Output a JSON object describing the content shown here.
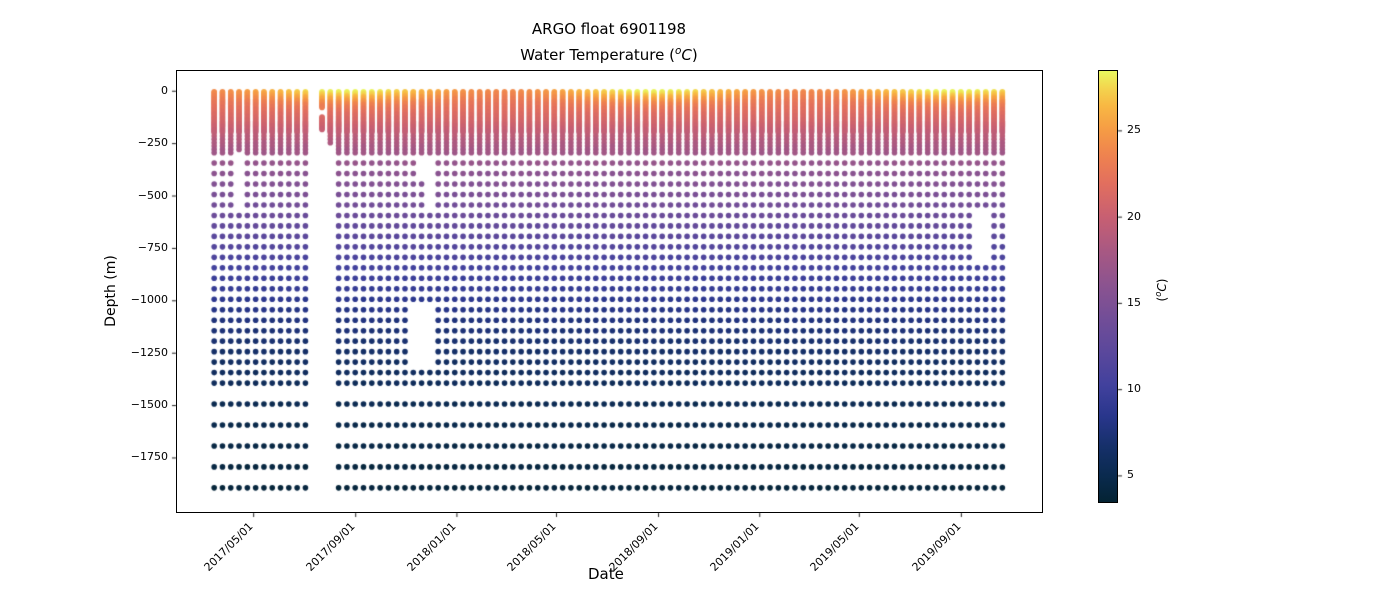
{
  "labels": {
    "title": "ARGO float 6901198",
    "subtitle_prefix": "Water Temperature (",
    "subtitle_sup": "o",
    "subtitle_var": "C",
    "subtitle_close": ")",
    "xlabel": "Date",
    "ylabel": "Depth (m)",
    "colorbar_prefix": "(",
    "colorbar_sup": "o",
    "colorbar_var": "C",
    "colorbar_close": ")"
  },
  "chart_data": {
    "type": "scatter",
    "title": "ARGO float 6901198",
    "subtitle": "Water Temperature (°C)",
    "xlabel": "Date",
    "ylabel": "Depth (m)",
    "grid": false,
    "x_ticks": [
      {
        "label": "2017/05/01",
        "date": "2017-05-01"
      },
      {
        "label": "2017/09/01",
        "date": "2017-09-01"
      },
      {
        "label": "2018/01/01",
        "date": "2018-01-01"
      },
      {
        "label": "2018/05/01",
        "date": "2018-05-01"
      },
      {
        "label": "2018/09/01",
        "date": "2018-09-01"
      },
      {
        "label": "2019/01/01",
        "date": "2019-01-01"
      },
      {
        "label": "2019/05/01",
        "date": "2019-05-01"
      },
      {
        "label": "2019/09/01",
        "date": "2019-09-01"
      }
    ],
    "y_ticks": [
      {
        "label": "0",
        "value": 0
      },
      {
        "label": "−250",
        "value": -250
      },
      {
        "label": "−500",
        "value": -500
      },
      {
        "label": "−750",
        "value": -750
      },
      {
        "label": "−1000",
        "value": -1000
      },
      {
        "label": "−1250",
        "value": -1250
      },
      {
        "label": "−1500",
        "value": -1500
      },
      {
        "label": "−1750",
        "value": -1750
      }
    ],
    "xlim": [
      "2017-01-28",
      "2019-12-09"
    ],
    "ylim": [
      -2015,
      99
    ],
    "colorbar": {
      "label": "(°C)",
      "ticks": [
        5,
        10,
        15,
        20,
        25
      ],
      "vmin": 3.4,
      "vmax": 28.5,
      "colormap_name": "cmocean-thermal",
      "colormap_stops": [
        [
          0.0,
          "#042333"
        ],
        [
          0.06,
          "#0a2a4e"
        ],
        [
          0.13,
          "#16306a"
        ],
        [
          0.2,
          "#29368c"
        ],
        [
          0.27,
          "#41419d"
        ],
        [
          0.34,
          "#58479c"
        ],
        [
          0.42,
          "#704d98"
        ],
        [
          0.5,
          "#8a5390"
        ],
        [
          0.58,
          "#a75883"
        ],
        [
          0.66,
          "#c75f72"
        ],
        [
          0.74,
          "#e26f5e"
        ],
        [
          0.8,
          "#ee8150"
        ],
        [
          0.86,
          "#f59a45"
        ],
        [
          0.92,
          "#f8b843"
        ],
        [
          0.96,
          "#f3d44e"
        ],
        [
          1.0,
          "#e9f85e"
        ]
      ]
    },
    "profiles": {
      "start_date": "2017-03-15",
      "cadence_days": 10,
      "count": 96
    },
    "depth_levels_m": [
      {
        "from": 5,
        "to": 195,
        "step": 5
      },
      {
        "from": 200,
        "to": 296,
        "step": 16
      },
      {
        "from": 345,
        "to": 1395,
        "step": 50
      },
      {
        "from": 1495,
        "to": 1895,
        "step": 100
      }
    ],
    "temperature_model": {
      "base_profile_degC_by_depth_m": [
        [
          0,
          22.3
        ],
        [
          50,
          21.95
        ],
        [
          100,
          21.6
        ],
        [
          150,
          20.8
        ],
        [
          200,
          19.6
        ],
        [
          250,
          18.4
        ],
        [
          300,
          17.4
        ],
        [
          350,
          16.6
        ],
        [
          400,
          15.9
        ],
        [
          450,
          15.3
        ],
        [
          500,
          14.7
        ],
        [
          550,
          14.0
        ],
        [
          600,
          13.4
        ],
        [
          650,
          12.7
        ],
        [
          700,
          12.1
        ],
        [
          750,
          11.5
        ],
        [
          800,
          10.9
        ],
        [
          850,
          10.3
        ],
        [
          900,
          9.7
        ],
        [
          950,
          9.2
        ],
        [
          1000,
          8.6
        ],
        [
          1100,
          7.6
        ],
        [
          1200,
          6.8
        ],
        [
          1300,
          6.1
        ],
        [
          1400,
          5.6
        ],
        [
          1500,
          5.1
        ],
        [
          1600,
          4.7
        ],
        [
          1700,
          4.4
        ],
        [
          1800,
          4.1
        ],
        [
          1900,
          3.9
        ]
      ],
      "seasonal": {
        "mean_amplitude_degC": 4.1,
        "cos_amplitude_degC": 2.3,
        "peak_day_of_year": 235,
        "depth_decay_scale_m": 60,
        "depth_decay_exponent": 1.6
      },
      "noise_amp_degC": 0.15
    },
    "gaps": {
      "missing_profiles_idx": [
        12
      ],
      "partial_profiles": [
        {
          "idx": 13,
          "keep_depth_segments_m": [
            [
              5,
              80
            ],
            [
              125,
              185
            ]
          ]
        }
      ],
      "depth_gaps": [
        {
          "idx": [
            3
          ],
          "depth_range_m": [
            290,
            580
          ]
        },
        {
          "idx": [
            14
          ],
          "depth_range_m": [
            250,
            1950
          ]
        },
        {
          "idx": [
            25
          ],
          "depth_range_m": [
            310,
            400
          ]
        },
        {
          "idx": [
            26
          ],
          "depth_range_m": [
            310,
            555
          ]
        },
        {
          "idx": [
            24,
            25,
            26
          ],
          "depth_range_m": [
            1000,
            1320
          ]
        },
        {
          "idx": [
            92,
            93
          ],
          "depth_range_m": [
            560,
            840
          ]
        }
      ]
    },
    "marker": {
      "radius_px": 2.8
    }
  }
}
